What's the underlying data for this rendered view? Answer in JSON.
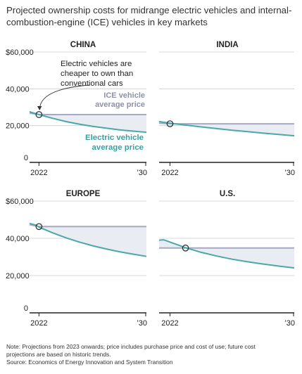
{
  "title": "Projected ownership costs for midrange electric vehicles and internal-combustion-engine (ICE) vehicles in key markets",
  "notes": {
    "note_line1": "Note: Projections from 2023 onwards; price includes purchase price and cost of use; future cost",
    "note_line2": "projections are based on historic trends.",
    "source": "Source: Economics of Energy Innovation and System Transition"
  },
  "colors": {
    "ev": "#4aa8a8",
    "ice": "#a6a9c4",
    "fill": "#e9ecf3",
    "grid": "#cccccc",
    "axis": "#222222",
    "text": "#222222",
    "ice_label": "#8e91a8",
    "ev_label": "#3aa0a0"
  },
  "y_axis": {
    "ticks": [
      0,
      20000,
      40000,
      60000
    ],
    "tick_labels": [
      "0",
      "20,000",
      "40,000",
      "$60,000"
    ]
  },
  "chart_data": [
    {
      "type": "line",
      "title": "CHINA",
      "x_ticks": [
        "2022",
        "’30"
      ],
      "xlim": [
        2021.3,
        2030
      ],
      "ylim": [
        0,
        60000
      ],
      "series": [
        {
          "name": "Electric vehicle average price",
          "x": [
            2021.3,
            2022,
            2023,
            2024,
            2025,
            2026,
            2027,
            2028,
            2029,
            2030
          ],
          "values": [
            27500,
            26000,
            24000,
            22200,
            20800,
            19600,
            18600,
            17700,
            17000,
            16400
          ]
        },
        {
          "name": "ICE vehicle average price",
          "x": [
            2021.3,
            2022,
            2030
          ],
          "values": [
            26800,
            26000,
            26000
          ]
        }
      ],
      "annotations": [
        {
          "text_lines": [
            "Electric vehicles are",
            "cheaper to own than",
            "conventional cars"
          ]
        },
        {
          "text_lines": [
            "ICE vehicle",
            "average price"
          ],
          "series": "ICE"
        },
        {
          "text_lines": [
            "Electric vehicle",
            "average price"
          ],
          "series": "EV"
        }
      ],
      "crossover": {
        "x": 2022,
        "y": 26000
      }
    },
    {
      "type": "line",
      "title": "INDIA",
      "x_ticks": [
        "2022",
        "’30"
      ],
      "xlim": [
        2021.3,
        2030
      ],
      "ylim": [
        0,
        60000
      ],
      "series": [
        {
          "name": "EV",
          "x": [
            2021.3,
            2022,
            2023,
            2024,
            2025,
            2026,
            2027,
            2028,
            2029,
            2030
          ],
          "values": [
            22200,
            21300,
            20300,
            19300,
            18400,
            17500,
            16700,
            15900,
            15200,
            14500
          ]
        },
        {
          "name": "ICE",
          "x": [
            2021.3,
            2022,
            2030
          ],
          "values": [
            21300,
            21000,
            21000
          ]
        }
      ],
      "crossover": {
        "x": 2022,
        "y": 21000
      }
    },
    {
      "type": "line",
      "title": "EUROPE",
      "x_ticks": [
        "2022",
        "’30"
      ],
      "xlim": [
        2021.3,
        2030
      ],
      "ylim": [
        0,
        60000
      ],
      "series": [
        {
          "name": "EV",
          "x": [
            2021.3,
            2021.8,
            2022,
            2023,
            2024,
            2025,
            2026,
            2027,
            2028,
            2029,
            2030
          ],
          "values": [
            48000,
            47000,
            46000,
            43000,
            40300,
            38000,
            36000,
            34300,
            32800,
            31500,
            30300
          ]
        },
        {
          "name": "ICE",
          "x": [
            2021.3,
            2022,
            2030
          ],
          "values": [
            47300,
            46300,
            46300
          ]
        }
      ],
      "crossover": {
        "x": 2022,
        "y": 46300
      }
    },
    {
      "type": "line",
      "title": "U.S.",
      "x_ticks": [
        "2022",
        "’30"
      ],
      "xlim": [
        2021.3,
        2030
      ],
      "ylim": [
        0,
        60000
      ],
      "series": [
        {
          "name": "EV",
          "x": [
            2021.3,
            2021.6,
            2022,
            2023,
            2024,
            2025,
            2026,
            2027,
            2028,
            2029,
            2030
          ],
          "values": [
            39000,
            39200,
            38000,
            35000,
            32500,
            30500,
            28800,
            27400,
            26200,
            25100,
            24100
          ]
        },
        {
          "name": "ICE",
          "x": [
            2021.3,
            2030
          ],
          "values": [
            34800,
            34800
          ]
        }
      ],
      "crossover": {
        "x": 2023,
        "y": 34800
      }
    }
  ]
}
